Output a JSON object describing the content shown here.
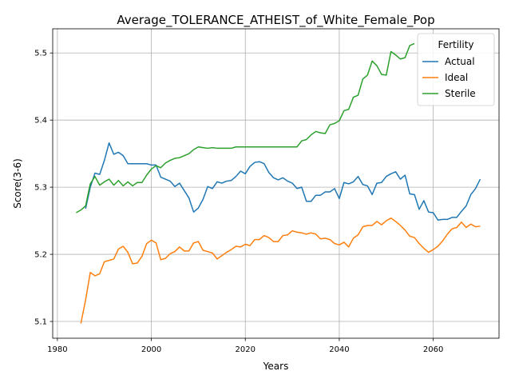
{
  "chart_data": {
    "type": "line",
    "title": "Average_TOLERANCE_ATHEIST_of_White_Female_Pop",
    "xlabel": "Years",
    "ylabel": "Score(3-6)",
    "xlim": [
      1979,
      2074
    ],
    "ylim": [
      5.075,
      5.536
    ],
    "x_ticks": [
      1980,
      2000,
      2020,
      2040,
      2060
    ],
    "y_ticks": [
      5.1,
      5.2,
      5.3,
      5.4,
      5.5
    ],
    "grid": true,
    "legend": {
      "title": "Fertility",
      "placement": "top-right"
    },
    "series": [
      {
        "name": "Actual",
        "color": "#1f77b4",
        "points": [
          [
            1986,
            5.268
          ],
          [
            1987,
            5.3
          ],
          [
            1988,
            5.321
          ],
          [
            1989,
            5.319
          ],
          [
            1990,
            5.34
          ],
          [
            1991,
            5.366
          ],
          [
            1992,
            5.349
          ],
          [
            1993,
            5.352
          ],
          [
            1994,
            5.347
          ],
          [
            1995,
            5.335
          ],
          [
            1996,
            5.335
          ],
          [
            1997,
            5.335
          ],
          [
            1998,
            5.335
          ],
          [
            1999,
            5.335
          ],
          [
            2000,
            5.333
          ],
          [
            2001,
            5.333
          ],
          [
            2002,
            5.315
          ],
          [
            2003,
            5.312
          ],
          [
            2004,
            5.309
          ],
          [
            2005,
            5.301
          ],
          [
            2006,
            5.306
          ],
          [
            2007,
            5.295
          ],
          [
            2008,
            5.284
          ],
          [
            2009,
            5.263
          ],
          [
            2010,
            5.269
          ],
          [
            2011,
            5.282
          ],
          [
            2012,
            5.301
          ],
          [
            2013,
            5.298
          ],
          [
            2014,
            5.308
          ],
          [
            2015,
            5.306
          ],
          [
            2016,
            5.309
          ],
          [
            2017,
            5.31
          ],
          [
            2018,
            5.316
          ],
          [
            2019,
            5.324
          ],
          [
            2020,
            5.32
          ],
          [
            2021,
            5.331
          ],
          [
            2022,
            5.337
          ],
          [
            2023,
            5.338
          ],
          [
            2024,
            5.335
          ],
          [
            2025,
            5.322
          ],
          [
            2026,
            5.314
          ],
          [
            2027,
            5.311
          ],
          [
            2028,
            5.314
          ],
          [
            2029,
            5.309
          ],
          [
            2030,
            5.306
          ],
          [
            2031,
            5.298
          ],
          [
            2032,
            5.3
          ],
          [
            2033,
            5.279
          ],
          [
            2034,
            5.279
          ],
          [
            2035,
            5.288
          ],
          [
            2036,
            5.288
          ],
          [
            2037,
            5.293
          ],
          [
            2038,
            5.293
          ],
          [
            2039,
            5.298
          ],
          [
            2040,
            5.283
          ],
          [
            2041,
            5.307
          ],
          [
            2042,
            5.305
          ],
          [
            2043,
            5.308
          ],
          [
            2044,
            5.316
          ],
          [
            2045,
            5.304
          ],
          [
            2046,
            5.302
          ],
          [
            2047,
            5.289
          ],
          [
            2048,
            5.306
          ],
          [
            2049,
            5.307
          ],
          [
            2050,
            5.316
          ],
          [
            2051,
            5.32
          ],
          [
            2052,
            5.323
          ],
          [
            2053,
            5.312
          ],
          [
            2054,
            5.318
          ],
          [
            2055,
            5.29
          ],
          [
            2056,
            5.289
          ],
          [
            2057,
            5.267
          ],
          [
            2058,
            5.28
          ],
          [
            2059,
            5.263
          ],
          [
            2060,
            5.262
          ],
          [
            2061,
            5.251
          ],
          [
            2062,
            5.252
          ],
          [
            2063,
            5.252
          ],
          [
            2064,
            5.255
          ],
          [
            2065,
            5.255
          ],
          [
            2066,
            5.264
          ],
          [
            2067,
            5.272
          ],
          [
            2068,
            5.289
          ],
          [
            2069,
            5.298
          ],
          [
            2070,
            5.312
          ]
        ]
      },
      {
        "name": "Ideal",
        "color": "#ff7f0e",
        "points": [
          [
            1985,
            5.097
          ],
          [
            1986,
            5.132
          ],
          [
            1987,
            5.173
          ],
          [
            1988,
            5.168
          ],
          [
            1989,
            5.171
          ],
          [
            1990,
            5.189
          ],
          [
            1991,
            5.191
          ],
          [
            1992,
            5.193
          ],
          [
            1993,
            5.208
          ],
          [
            1994,
            5.212
          ],
          [
            1995,
            5.203
          ],
          [
            1996,
            5.186
          ],
          [
            1997,
            5.187
          ],
          [
            1998,
            5.197
          ],
          [
            1999,
            5.216
          ],
          [
            2000,
            5.221
          ],
          [
            2001,
            5.217
          ],
          [
            2002,
            5.192
          ],
          [
            2003,
            5.194
          ],
          [
            2004,
            5.201
          ],
          [
            2005,
            5.204
          ],
          [
            2006,
            5.211
          ],
          [
            2007,
            5.205
          ],
          [
            2008,
            5.205
          ],
          [
            2009,
            5.217
          ],
          [
            2010,
            5.219
          ],
          [
            2011,
            5.206
          ],
          [
            2012,
            5.204
          ],
          [
            2013,
            5.202
          ],
          [
            2014,
            5.193
          ],
          [
            2015,
            5.198
          ],
          [
            2016,
            5.203
          ],
          [
            2017,
            5.207
          ],
          [
            2018,
            5.212
          ],
          [
            2019,
            5.211
          ],
          [
            2020,
            5.215
          ],
          [
            2021,
            5.213
          ],
          [
            2022,
            5.222
          ],
          [
            2023,
            5.222
          ],
          [
            2024,
            5.228
          ],
          [
            2025,
            5.225
          ],
          [
            2026,
            5.219
          ],
          [
            2027,
            5.219
          ],
          [
            2028,
            5.228
          ],
          [
            2029,
            5.229
          ],
          [
            2030,
            5.235
          ],
          [
            2031,
            5.233
          ],
          [
            2032,
            5.232
          ],
          [
            2033,
            5.23
          ],
          [
            2034,
            5.232
          ],
          [
            2035,
            5.23
          ],
          [
            2036,
            5.223
          ],
          [
            2037,
            5.224
          ],
          [
            2038,
            5.222
          ],
          [
            2039,
            5.216
          ],
          [
            2040,
            5.214
          ],
          [
            2041,
            5.218
          ],
          [
            2042,
            5.211
          ],
          [
            2043,
            5.224
          ],
          [
            2044,
            5.229
          ],
          [
            2045,
            5.241
          ],
          [
            2046,
            5.243
          ],
          [
            2047,
            5.243
          ],
          [
            2048,
            5.249
          ],
          [
            2049,
            5.244
          ],
          [
            2050,
            5.25
          ],
          [
            2051,
            5.254
          ],
          [
            2052,
            5.249
          ],
          [
            2053,
            5.243
          ],
          [
            2054,
            5.236
          ],
          [
            2055,
            5.227
          ],
          [
            2056,
            5.225
          ],
          [
            2057,
            5.216
          ],
          [
            2058,
            5.209
          ],
          [
            2059,
            5.203
          ],
          [
            2060,
            5.207
          ],
          [
            2061,
            5.212
          ],
          [
            2062,
            5.22
          ],
          [
            2063,
            5.23
          ],
          [
            2064,
            5.238
          ],
          [
            2065,
            5.24
          ],
          [
            2066,
            5.248
          ],
          [
            2067,
            5.24
          ],
          [
            2068,
            5.245
          ],
          [
            2069,
            5.241
          ],
          [
            2070,
            5.242
          ]
        ]
      },
      {
        "name": "Sterile",
        "color": "#2ca02c",
        "points": [
          [
            1984,
            5.262
          ],
          [
            1985,
            5.266
          ],
          [
            1986,
            5.272
          ],
          [
            1987,
            5.305
          ],
          [
            1988,
            5.316
          ],
          [
            1989,
            5.303
          ],
          [
            1990,
            5.308
          ],
          [
            1991,
            5.312
          ],
          [
            1992,
            5.303
          ],
          [
            1993,
            5.31
          ],
          [
            1994,
            5.302
          ],
          [
            1995,
            5.308
          ],
          [
            1996,
            5.302
          ],
          [
            1997,
            5.307
          ],
          [
            1998,
            5.307
          ],
          [
            1999,
            5.318
          ],
          [
            2000,
            5.327
          ],
          [
            2001,
            5.332
          ],
          [
            2002,
            5.329
          ],
          [
            2003,
            5.336
          ],
          [
            2004,
            5.34
          ],
          [
            2005,
            5.343
          ],
          [
            2006,
            5.344
          ],
          [
            2007,
            5.347
          ],
          [
            2008,
            5.35
          ],
          [
            2009,
            5.356
          ],
          [
            2010,
            5.36
          ],
          [
            2011,
            5.359
          ],
          [
            2012,
            5.358
          ],
          [
            2013,
            5.359
          ],
          [
            2014,
            5.358
          ],
          [
            2015,
            5.358
          ],
          [
            2016,
            5.358
          ],
          [
            2017,
            5.358
          ],
          [
            2018,
            5.36
          ],
          [
            2019,
            5.36
          ],
          [
            2020,
            5.36
          ],
          [
            2021,
            5.36
          ],
          [
            2022,
            5.36
          ],
          [
            2023,
            5.36
          ],
          [
            2024,
            5.36
          ],
          [
            2025,
            5.36
          ],
          [
            2026,
            5.36
          ],
          [
            2027,
            5.36
          ],
          [
            2028,
            5.36
          ],
          [
            2029,
            5.36
          ],
          [
            2030,
            5.36
          ],
          [
            2031,
            5.36
          ],
          [
            2032,
            5.369
          ],
          [
            2033,
            5.371
          ],
          [
            2034,
            5.378
          ],
          [
            2035,
            5.383
          ],
          [
            2036,
            5.381
          ],
          [
            2037,
            5.38
          ],
          [
            2038,
            5.393
          ],
          [
            2039,
            5.395
          ],
          [
            2040,
            5.399
          ],
          [
            2041,
            5.414
          ],
          [
            2042,
            5.416
          ],
          [
            2043,
            5.434
          ],
          [
            2044,
            5.437
          ],
          [
            2045,
            5.461
          ],
          [
            2046,
            5.467
          ],
          [
            2047,
            5.488
          ],
          [
            2048,
            5.481
          ],
          [
            2049,
            5.468
          ],
          [
            2050,
            5.467
          ],
          [
            2051,
            5.502
          ],
          [
            2052,
            5.497
          ],
          [
            2053,
            5.491
          ],
          [
            2054,
            5.493
          ],
          [
            2055,
            5.511
          ],
          [
            2056,
            5.514
          ]
        ]
      }
    ]
  }
}
